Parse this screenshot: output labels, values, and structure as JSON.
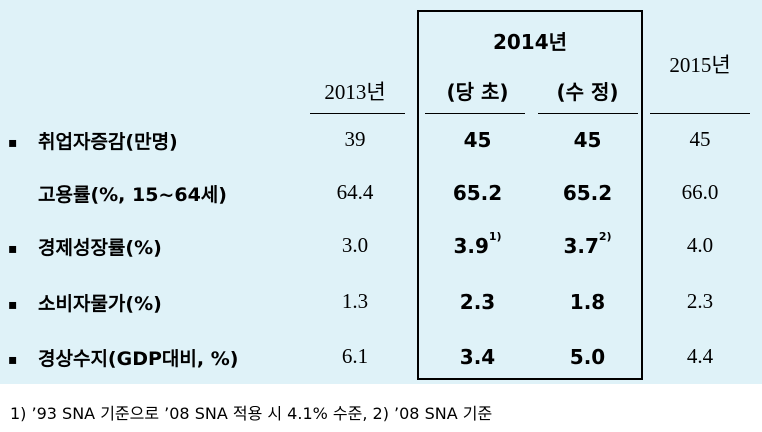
{
  "header": {
    "y2013": "2013년",
    "y2014": "2014년",
    "y2014_initial": "(당 초)",
    "y2014_revised": "(수 정)",
    "y2015": "2015년"
  },
  "rows": [
    {
      "bullet": "▪",
      "label": "취업자증감(만명)",
      "v2013": "39",
      "initial": "45",
      "initial_note": "",
      "revised": "45",
      "revised_note": "",
      "v2015": "45"
    },
    {
      "bullet": "",
      "label": "고용률(%, 15~64세)",
      "v2013": "64.4",
      "initial": "65.2",
      "initial_note": "",
      "revised": "65.2",
      "revised_note": "",
      "v2015": "66.0"
    },
    {
      "bullet": "▪",
      "label": "경제성장률(%)",
      "v2013": "3.0",
      "initial": "3.9",
      "initial_note": "1)",
      "revised": "3.7",
      "revised_note": "2)",
      "v2015": "4.0"
    },
    {
      "bullet": "▪",
      "label": "소비자물가(%)",
      "v2013": "1.3",
      "initial": "2.3",
      "initial_note": "",
      "revised": "1.8",
      "revised_note": "",
      "v2015": "2.3"
    },
    {
      "bullet": "▪",
      "label": "경상수지(GDP대비, %)",
      "v2013": "6.1",
      "initial": "3.4",
      "initial_note": "",
      "revised": "5.0",
      "revised_note": "",
      "v2015": "4.4"
    }
  ],
  "footnote": "1) ’93 SNA 기준으로 ’08 SNA 적용 시 4.1% 수준, 2) ’08 SNA 기준"
}
